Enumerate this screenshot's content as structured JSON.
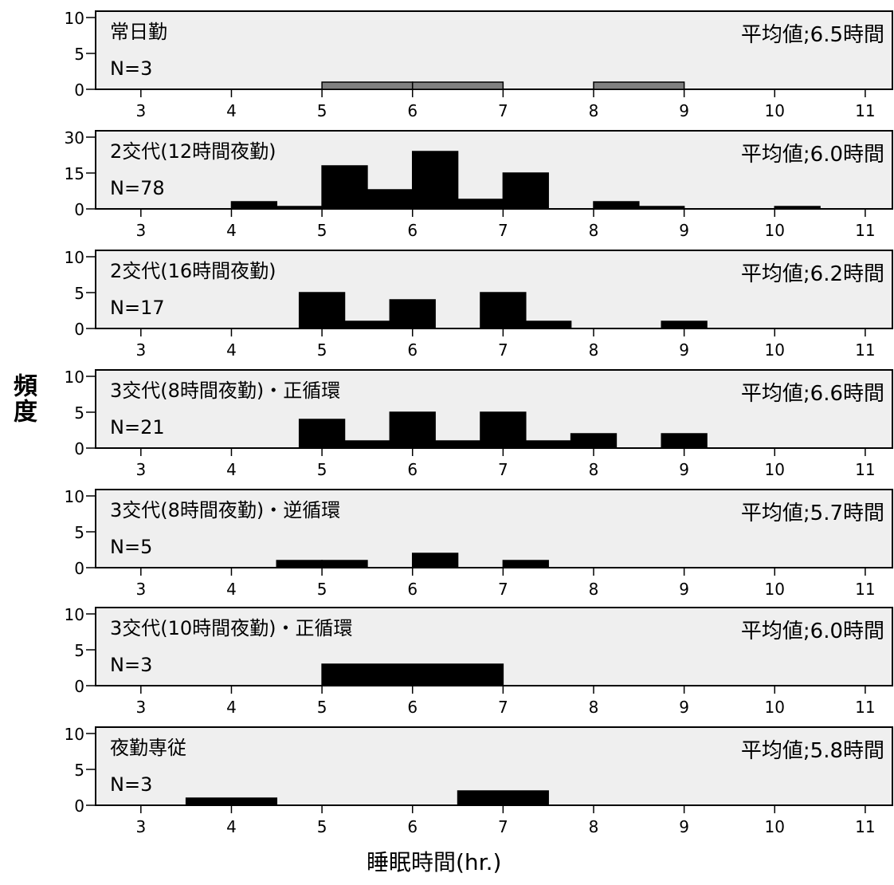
{
  "chart_data": {
    "type": "bar",
    "ylabel": "頻度",
    "xlabel": "睡眠時間(hr.)",
    "x_ticks": [
      3,
      4,
      5,
      6,
      7,
      8,
      9,
      10,
      11
    ],
    "xlim": [
      2.5,
      11.3
    ],
    "panels": [
      {
        "title": "常日勤",
        "n_label": "N=3",
        "mean_label": "平均値;6.5時間",
        "ylim": [
          0,
          10
        ],
        "yticks": [
          0,
          5,
          10
        ],
        "bar_color": "#808080",
        "bins": [
          {
            "x0": 5.0,
            "x1": 6.0,
            "value": 1
          },
          {
            "x0": 6.0,
            "x1": 7.0,
            "value": 1
          },
          {
            "x0": 8.0,
            "x1": 9.0,
            "value": 1
          }
        ]
      },
      {
        "title": "2交代(12時間夜勤)",
        "n_label": "N=78",
        "mean_label": "平均値;6.0時間",
        "ylim": [
          0,
          30
        ],
        "yticks": [
          0,
          15,
          30
        ],
        "bar_color": "#000000",
        "bins": [
          {
            "x0": 4.0,
            "x1": 4.5,
            "value": 3
          },
          {
            "x0": 4.5,
            "x1": 5.0,
            "value": 1
          },
          {
            "x0": 5.0,
            "x1": 5.5,
            "value": 18
          },
          {
            "x0": 5.5,
            "x1": 6.0,
            "value": 8
          },
          {
            "x0": 6.0,
            "x1": 6.5,
            "value": 24
          },
          {
            "x0": 6.5,
            "x1": 7.0,
            "value": 4
          },
          {
            "x0": 7.0,
            "x1": 7.5,
            "value": 15
          },
          {
            "x0": 8.0,
            "x1": 8.5,
            "value": 3
          },
          {
            "x0": 8.5,
            "x1": 9.0,
            "value": 1
          },
          {
            "x0": 10.0,
            "x1": 10.5,
            "value": 1
          }
        ]
      },
      {
        "title": "2交代(16時間夜勤)",
        "n_label": "N=17",
        "mean_label": "平均値;6.2時間",
        "ylim": [
          0,
          10
        ],
        "yticks": [
          0,
          5,
          10
        ],
        "bar_color": "#000000",
        "bins": [
          {
            "x0": 4.75,
            "x1": 5.25,
            "value": 5
          },
          {
            "x0": 5.25,
            "x1": 5.75,
            "value": 1
          },
          {
            "x0": 5.75,
            "x1": 6.25,
            "value": 4
          },
          {
            "x0": 6.75,
            "x1": 7.25,
            "value": 5
          },
          {
            "x0": 7.25,
            "x1": 7.75,
            "value": 1
          },
          {
            "x0": 8.75,
            "x1": 9.25,
            "value": 1
          }
        ]
      },
      {
        "title": "3交代(8時間夜勤)・正循環",
        "n_label": "N=21",
        "mean_label": "平均値;6.6時間",
        "ylim": [
          0,
          10
        ],
        "yticks": [
          0,
          5,
          10
        ],
        "bar_color": "#000000",
        "bins": [
          {
            "x0": 4.75,
            "x1": 5.25,
            "value": 4
          },
          {
            "x0": 5.25,
            "x1": 5.75,
            "value": 1
          },
          {
            "x0": 5.75,
            "x1": 6.25,
            "value": 5
          },
          {
            "x0": 6.25,
            "x1": 6.75,
            "value": 1
          },
          {
            "x0": 6.75,
            "x1": 7.25,
            "value": 5
          },
          {
            "x0": 7.25,
            "x1": 7.75,
            "value": 1
          },
          {
            "x0": 7.75,
            "x1": 8.25,
            "value": 2
          },
          {
            "x0": 8.75,
            "x1": 9.25,
            "value": 2
          }
        ]
      },
      {
        "title": "3交代(8時間夜勤)・逆循環",
        "n_label": "N=5",
        "mean_label": "平均値;5.7時間",
        "ylim": [
          0,
          10
        ],
        "yticks": [
          0,
          5,
          10
        ],
        "bar_color": "#000000",
        "bins": [
          {
            "x0": 4.5,
            "x1": 5.0,
            "value": 1
          },
          {
            "x0": 5.0,
            "x1": 5.5,
            "value": 1
          },
          {
            "x0": 6.0,
            "x1": 6.5,
            "value": 2
          },
          {
            "x0": 7.0,
            "x1": 7.5,
            "value": 1
          }
        ]
      },
      {
        "title": "3交代(10時間夜勤)・正循環",
        "n_label": "N=3",
        "mean_label": "平均値;6.0時間",
        "ylim": [
          0,
          10
        ],
        "yticks": [
          0,
          5,
          10
        ],
        "bar_color": "#000000",
        "bins": [
          {
            "x0": 5.0,
            "x1": 7.0,
            "value": 3
          }
        ]
      },
      {
        "title": "夜勤専従",
        "n_label": "N=3",
        "mean_label": "平均値;5.8時間",
        "ylim": [
          0,
          10
        ],
        "yticks": [
          0,
          5,
          10
        ],
        "bar_color": "#000000",
        "bins": [
          {
            "x0": 3.5,
            "x1": 4.5,
            "value": 1
          },
          {
            "x0": 6.5,
            "x1": 7.5,
            "value": 2
          }
        ]
      }
    ]
  }
}
